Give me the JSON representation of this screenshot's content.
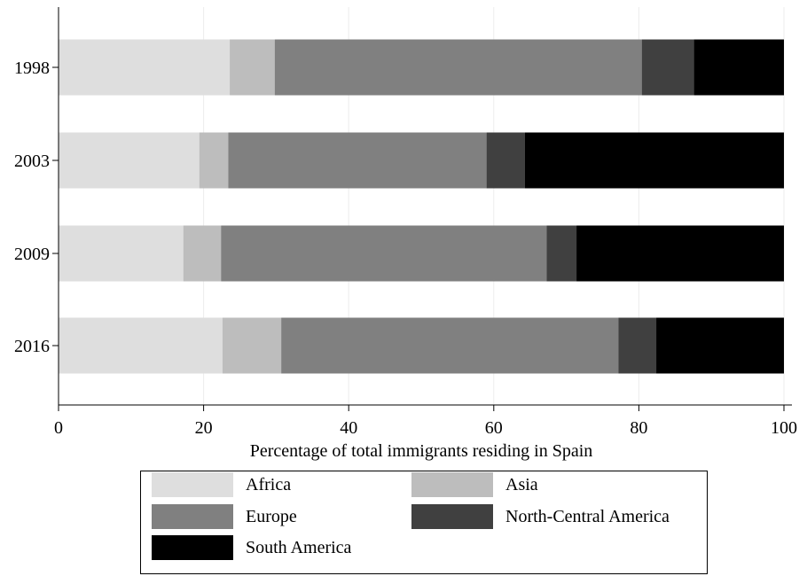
{
  "chart_data": {
    "type": "bar",
    "orientation": "horizontal",
    "stacked": true,
    "categories": [
      "1998",
      "2003",
      "2009",
      "2016"
    ],
    "series": [
      {
        "name": "Africa",
        "color": "#dedede",
        "values": [
          23.6,
          19.4,
          17.2,
          22.6
        ]
      },
      {
        "name": "Asia",
        "color": "#bdbdbd",
        "values": [
          6.2,
          4.0,
          5.2,
          8.1
        ]
      },
      {
        "name": "Europe",
        "color": "#808080",
        "values": [
          50.6,
          35.6,
          44.9,
          46.5
        ]
      },
      {
        "name": "North-Central America",
        "color": "#404040",
        "values": [
          7.2,
          5.3,
          4.1,
          5.2
        ]
      },
      {
        "name": "South America",
        "color": "#000000",
        "values": [
          12.4,
          35.7,
          28.6,
          17.6
        ]
      }
    ],
    "xlabel": "Percentage of total immigrants residing in Spain",
    "ylabel": "",
    "xlim": [
      0,
      100
    ],
    "xticks": [
      0,
      20,
      40,
      60,
      80,
      100
    ],
    "grid": "vertical",
    "legend_position": "bottom"
  }
}
